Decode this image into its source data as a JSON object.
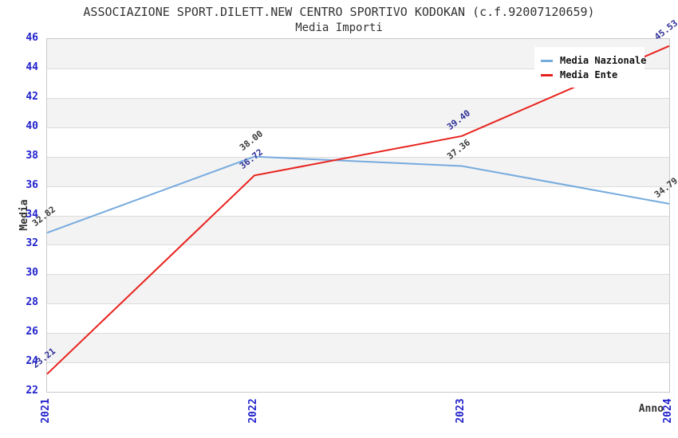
{
  "header": {
    "title": "ASSOCIAZIONE SPORT.DILETT.NEW CENTRO SPORTIVO KODOKAN (c.f.92007120659)",
    "subtitle": "Media Importi"
  },
  "legend": {
    "position": "top-right",
    "items": [
      {
        "label": "Media Nazionale",
        "color": "#76abde"
      },
      {
        "label": "Media Ente",
        "color": "#e8231e"
      }
    ]
  },
  "axes": {
    "xlabel": "Anno",
    "ylabel": "Media",
    "x_ticks": [
      "2021",
      "2022",
      "2023",
      "2024"
    ],
    "y_ticks": [
      "46",
      "44",
      "42",
      "40",
      "38",
      "36",
      "34",
      "32",
      "30",
      "28",
      "26",
      "24",
      "22"
    ],
    "tick_color": "#2222cc"
  },
  "chart_data": {
    "type": "line",
    "title": "ASSOCIAZIONE SPORT.DILETT.NEW CENTRO SPORTIVO KODOKAN (c.f.92007120659)",
    "subtitle": "Media Importi",
    "x": [
      2021,
      2022,
      2023,
      2024
    ],
    "xlabel": "Anno",
    "ylabel": "Media",
    "ylim": [
      22,
      46
    ],
    "ytick_step": 2,
    "grid": "horizontal-bands-alternating",
    "legend_position": "top-right",
    "series": [
      {
        "name": "Media Nazionale",
        "color": "#76abde",
        "label_color": "#3a3a3a",
        "values": [
          32.82,
          38.0,
          37.36,
          34.79
        ],
        "labels": [
          "32.82",
          "38.00",
          "37.36",
          "34.79"
        ]
      },
      {
        "name": "Media Ente",
        "color": "#e8231e",
        "label_color": "#303099",
        "values": [
          23.21,
          36.72,
          39.4,
          45.53
        ],
        "labels": [
          "23.21",
          "36.72",
          "39.40",
          "45.53"
        ]
      }
    ]
  },
  "colors": {
    "band_gray": "#f3f3f3",
    "gridline": "#dcdcdc",
    "plot_border": "#c9c9c9",
    "heading_text": "#333333"
  }
}
